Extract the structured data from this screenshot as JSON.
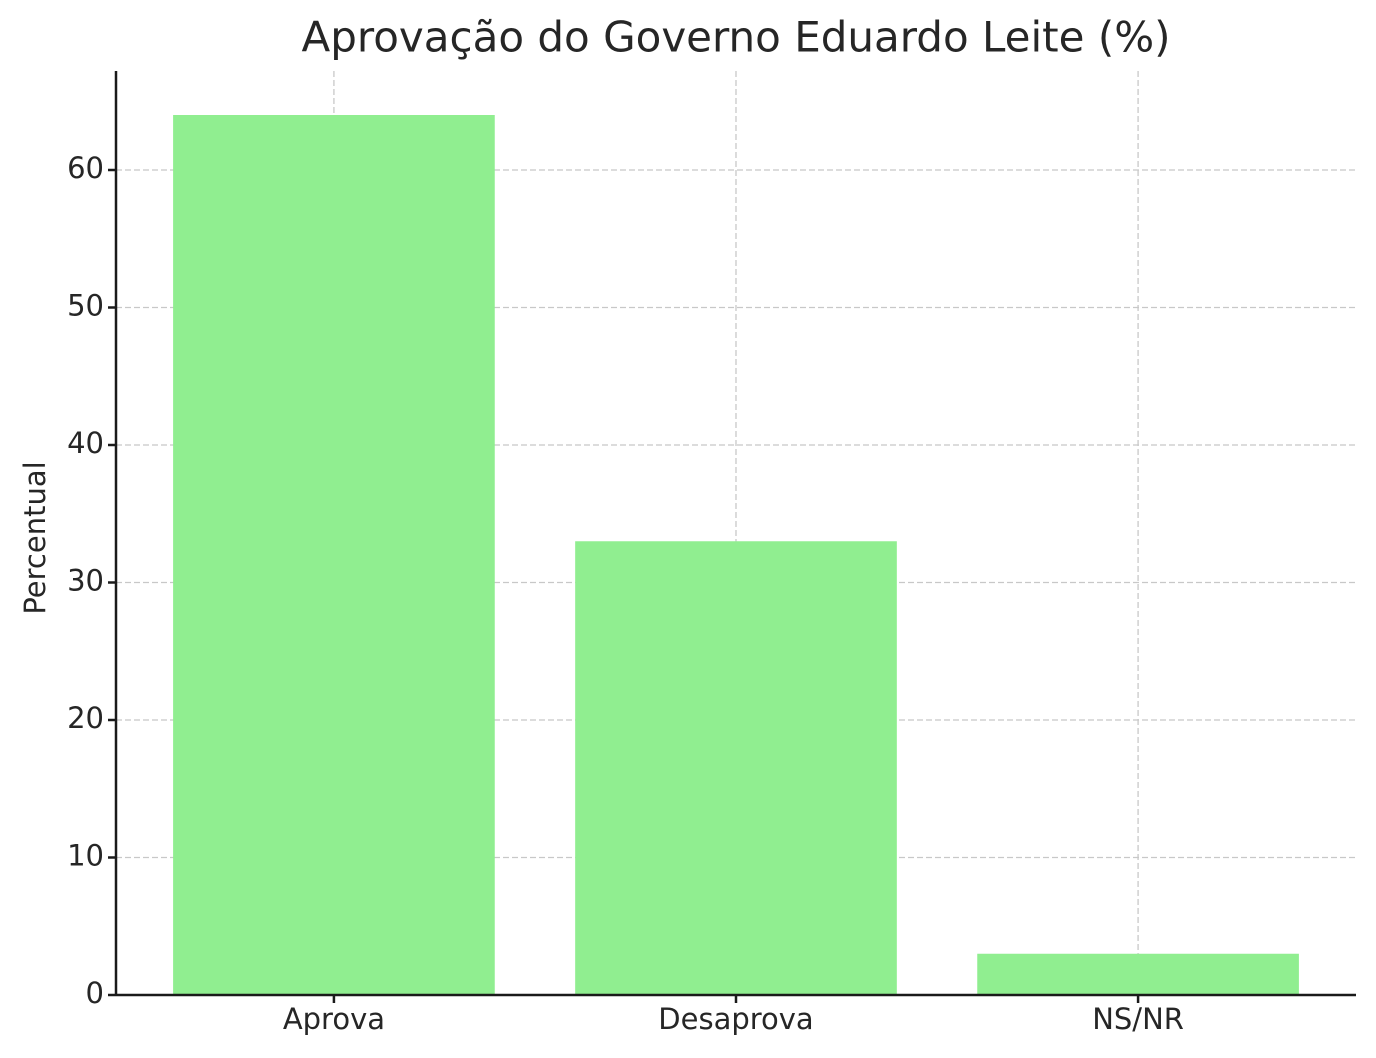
{
  "chart_data": {
    "type": "bar",
    "title": "Aprovação do Governo Eduardo Leite (%)",
    "ylabel": "Percentual",
    "categories": [
      "Aprova",
      "Desaprova",
      "NS/NR"
    ],
    "values": [
      64,
      33,
      3
    ],
    "color": "#90ee90",
    "ylim": [
      0,
      67.2
    ],
    "yticks": [
      0,
      10,
      20,
      30,
      40,
      50,
      60
    ],
    "grid": true
  }
}
